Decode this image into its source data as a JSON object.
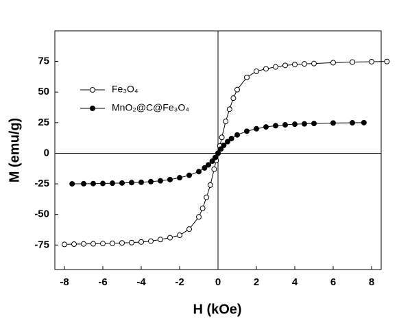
{
  "chart_data": {
    "type": "line",
    "xlabel": "H (kOe)",
    "ylabel": "M (emu/g)",
    "xlim": [
      -8.5,
      8.5
    ],
    "xticks": [
      -8,
      -6,
      -4,
      -2,
      0,
      2,
      4,
      6,
      8
    ],
    "ylim": [
      -95,
      100
    ],
    "yticks": [
      -75,
      -50,
      -25,
      0,
      25,
      50,
      75
    ],
    "series": [
      {
        "name": "Fe₃O₄",
        "color": "#000000",
        "marker": "open",
        "x": [
          -8,
          -7.5,
          -7,
          -6.5,
          -6,
          -5.5,
          -5,
          -4.5,
          -4,
          -3.5,
          -3,
          -2.5,
          -2,
          -1.5,
          -1,
          -0.8,
          -0.6,
          -0.4,
          -0.2,
          -0.1,
          0,
          0.1,
          0.2,
          0.4,
          0.6,
          0.8,
          1,
          1.5,
          2,
          2.5,
          3,
          3.5,
          4,
          4.5,
          5,
          6,
          7,
          8,
          8.8
        ],
        "values": [
          -74.5,
          -74.3,
          -74.1,
          -74,
          -73.8,
          -73.6,
          -73.3,
          -73,
          -72.5,
          -71.8,
          -70.5,
          -69,
          -67,
          -62,
          -52,
          -45,
          -36,
          -26,
          -13,
          -6,
          0,
          6,
          13,
          26,
          36,
          45,
          52,
          62,
          67,
          69,
          70.5,
          71.8,
          72.5,
          73,
          73.3,
          74,
          74.5,
          74.8,
          75
        ]
      },
      {
        "name": "MnO₂@C@Fe₃O₄",
        "color": "#000000",
        "marker": "filled",
        "x": [
          -7.6,
          -7,
          -6.5,
          -6,
          -5.5,
          -5,
          -4.5,
          -4,
          -3.5,
          -3,
          -2.5,
          -2,
          -1.5,
          -1,
          -0.7,
          -0.5,
          -0.3,
          -0.15,
          0,
          0.15,
          0.3,
          0.5,
          0.7,
          1,
          1.5,
          2,
          2.5,
          3,
          3.5,
          4,
          4.5,
          5,
          6,
          7,
          7.6
        ],
        "values": [
          -25,
          -24.9,
          -24.8,
          -24.7,
          -24.5,
          -24.3,
          -24,
          -23.7,
          -23.2,
          -22.5,
          -21.5,
          -20,
          -18,
          -15,
          -12,
          -9.5,
          -6.5,
          -3.5,
          0,
          3.5,
          6.5,
          9.5,
          12,
          15,
          18,
          20,
          21.5,
          22.5,
          23.2,
          23.7,
          24,
          24.3,
          24.7,
          24.9,
          25
        ]
      }
    ]
  }
}
